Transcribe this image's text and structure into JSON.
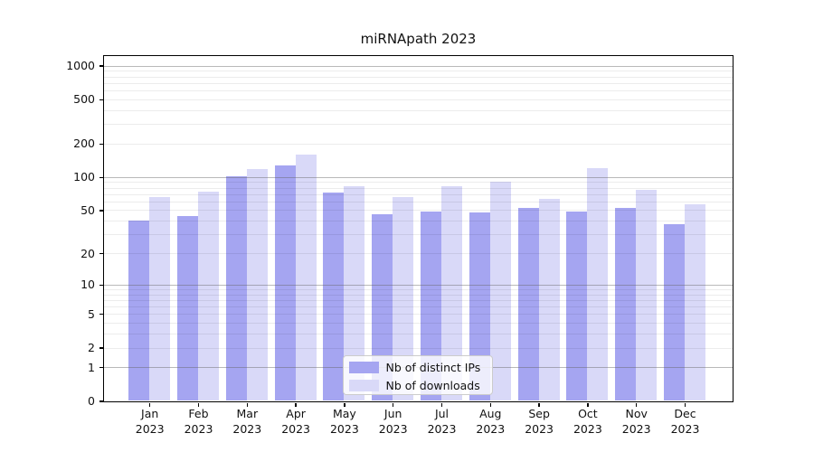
{
  "chart_data": {
    "type": "bar",
    "title": "miRNApath 2023",
    "categories": [
      "Jan",
      "Feb",
      "Mar",
      "Apr",
      "May",
      "Jun",
      "Jul",
      "Aug",
      "Sep",
      "Oct",
      "Nov",
      "Dec"
    ],
    "x_year": "2023",
    "series": [
      {
        "name": "Nb of distinct IPs",
        "color": "#a5a5f1",
        "values": [
          40,
          44,
          102,
          128,
          72,
          46,
          49,
          48,
          52,
          49,
          52,
          37
        ]
      },
      {
        "name": "Nb of downloads",
        "color": "#d9d9f8",
        "values": [
          66,
          73,
          118,
          160,
          83,
          66,
          82,
          90,
          63,
          120,
          76,
          56
        ]
      }
    ],
    "yscale": "log1p",
    "yticks": [
      0,
      1,
      2,
      5,
      10,
      20,
      50,
      100,
      200,
      500,
      1000
    ],
    "ylim": [
      0,
      1220
    ],
    "grid": true,
    "grid_major_at": [
      1,
      10,
      100,
      1000
    ],
    "legend_position": "lower center",
    "colors": {
      "axis": "#000000",
      "grid_major": "#c6c6c6",
      "grid_minor": "#ececec",
      "text": "#111111",
      "legend_border": "#cccccc"
    }
  }
}
